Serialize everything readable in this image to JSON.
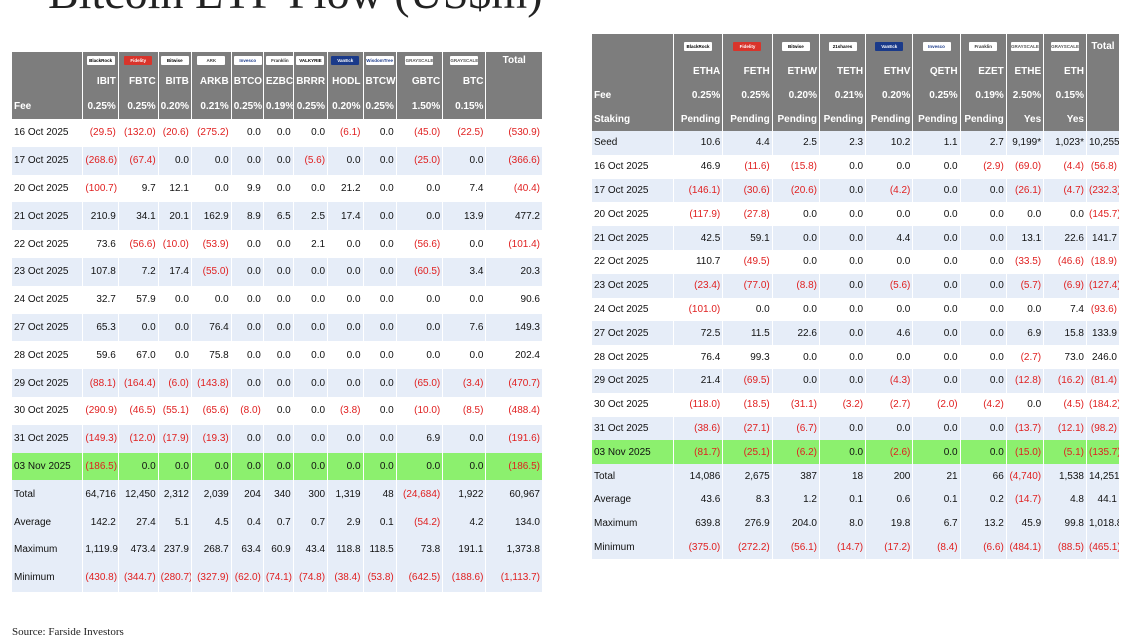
{
  "title": "Bitcoin ETF Flow (US$m)",
  "source": "Source: Farside Investors",
  "colors": {
    "header_bg": "#7d7d7d",
    "stripe": "#e6edf8",
    "highlight": "#8cf06e",
    "negative": "#e02020"
  },
  "btc": {
    "logos": [
      {
        "text": "BlackRock",
        "bg": "#ffffff",
        "fg": "#000000"
      },
      {
        "text": "Fidelity",
        "bg": "#d9342b",
        "fg": "#ffffff"
      },
      {
        "text": "Bitwise",
        "bg": "#ffffff",
        "fg": "#000000"
      },
      {
        "text": "ARK",
        "bg": "#ffffff",
        "fg": "#444444"
      },
      {
        "text": "Invesco",
        "bg": "#ffffff",
        "fg": "#1a3a8a"
      },
      {
        "text": "Franklin",
        "bg": "#ffffff",
        "fg": "#333333"
      },
      {
        "text": "VALKYRIE",
        "bg": "#ffffff",
        "fg": "#000000"
      },
      {
        "text": "VanEck",
        "bg": "#1a3a8a",
        "fg": "#ffffff"
      },
      {
        "text": "WisdomTree",
        "bg": "#ffffff",
        "fg": "#1a3a8a"
      },
      {
        "text": "GRAYSCALE",
        "bg": "#ffffff",
        "fg": "#555555"
      },
      {
        "text": "GRAYSCALE",
        "bg": "#ffffff",
        "fg": "#555555"
      }
    ],
    "total_label": "Total",
    "tickers": [
      "IBIT",
      "FBTC",
      "BITB",
      "ARKB",
      "BTCO",
      "EZBC",
      "BRRR",
      "HODL",
      "BTCW",
      "GBTC",
      "BTC"
    ],
    "fee_label": "Fee",
    "fees": [
      "0.25%",
      "0.25%",
      "0.20%",
      "0.21%",
      "0.25%",
      "0.19%",
      "0.25%",
      "0.20%",
      "0.25%",
      "1.50%",
      "0.15%"
    ],
    "rows": [
      {
        "date": "16 Oct 2025",
        "values": [
          "(29.5)",
          "(132.0)",
          "(20.6)",
          "(275.2)",
          "0.0",
          "0.0",
          "0.0",
          "(6.1)",
          "0.0",
          "(45.0)",
          "(22.5)"
        ],
        "total": "(530.9)"
      },
      {
        "date": "17 Oct 2025",
        "values": [
          "(268.6)",
          "(67.4)",
          "0.0",
          "0.0",
          "0.0",
          "0.0",
          "(5.6)",
          "0.0",
          "0.0",
          "(25.0)",
          "0.0"
        ],
        "total": "(366.6)"
      },
      {
        "date": "20 Oct 2025",
        "values": [
          "(100.7)",
          "9.7",
          "12.1",
          "0.0",
          "9.9",
          "0.0",
          "0.0",
          "21.2",
          "0.0",
          "0.0",
          "7.4"
        ],
        "total": "(40.4)"
      },
      {
        "date": "21 Oct 2025",
        "values": [
          "210.9",
          "34.1",
          "20.1",
          "162.9",
          "8.9",
          "6.5",
          "2.5",
          "17.4",
          "0.0",
          "0.0",
          "13.9"
        ],
        "total": "477.2"
      },
      {
        "date": "22 Oct 2025",
        "values": [
          "73.6",
          "(56.6)",
          "(10.0)",
          "(53.9)",
          "0.0",
          "0.0",
          "2.1",
          "0.0",
          "0.0",
          "(56.6)",
          "0.0"
        ],
        "total": "(101.4)"
      },
      {
        "date": "23 Oct 2025",
        "values": [
          "107.8",
          "7.2",
          "17.4",
          "(55.0)",
          "0.0",
          "0.0",
          "0.0",
          "0.0",
          "0.0",
          "(60.5)",
          "3.4"
        ],
        "total": "20.3"
      },
      {
        "date": "24 Oct 2025",
        "values": [
          "32.7",
          "57.9",
          "0.0",
          "0.0",
          "0.0",
          "0.0",
          "0.0",
          "0.0",
          "0.0",
          "0.0",
          "0.0"
        ],
        "total": "90.6"
      },
      {
        "date": "27 Oct 2025",
        "values": [
          "65.3",
          "0.0",
          "0.0",
          "76.4",
          "0.0",
          "0.0",
          "0.0",
          "0.0",
          "0.0",
          "0.0",
          "7.6"
        ],
        "total": "149.3"
      },
      {
        "date": "28 Oct 2025",
        "values": [
          "59.6",
          "67.0",
          "0.0",
          "75.8",
          "0.0",
          "0.0",
          "0.0",
          "0.0",
          "0.0",
          "0.0",
          "0.0"
        ],
        "total": "202.4"
      },
      {
        "date": "29 Oct 2025",
        "values": [
          "(88.1)",
          "(164.4)",
          "(6.0)",
          "(143.8)",
          "0.0",
          "0.0",
          "0.0",
          "0.0",
          "0.0",
          "(65.0)",
          "(3.4)"
        ],
        "total": "(470.7)"
      },
      {
        "date": "30 Oct 2025",
        "values": [
          "(290.9)",
          "(46.5)",
          "(55.1)",
          "(65.6)",
          "(8.0)",
          "0.0",
          "0.0",
          "(3.8)",
          "0.0",
          "(10.0)",
          "(8.5)"
        ],
        "total": "(488.4)"
      },
      {
        "date": "31 Oct 2025",
        "values": [
          "(149.3)",
          "(12.0)",
          "(17.9)",
          "(19.3)",
          "0.0",
          "0.0",
          "0.0",
          "0.0",
          "0.0",
          "6.9",
          "0.0"
        ],
        "total": "(191.6)"
      },
      {
        "date": "03 Nov 2025",
        "values": [
          "(186.5)",
          "0.0",
          "0.0",
          "0.0",
          "0.0",
          "0.0",
          "0.0",
          "0.0",
          "0.0",
          "0.0",
          "0.0"
        ],
        "total": "(186.5)",
        "highlight": true
      }
    ],
    "summary": [
      {
        "label": "Total",
        "values": [
          "64,716",
          "12,450",
          "2,312",
          "2,039",
          "204",
          "340",
          "300",
          "1,319",
          "48",
          "(24,684)",
          "1,922"
        ],
        "total": "60,967"
      },
      {
        "label": "Average",
        "values": [
          "142.2",
          "27.4",
          "5.1",
          "4.5",
          "0.4",
          "0.7",
          "0.7",
          "2.9",
          "0.1",
          "(54.2)",
          "4.2"
        ],
        "total": "134.0"
      },
      {
        "label": "Maximum",
        "values": [
          "1,119.9",
          "473.4",
          "237.9",
          "268.7",
          "63.4",
          "60.9",
          "43.4",
          "118.8",
          "118.5",
          "73.8",
          "191.1"
        ],
        "total": "1,373.8"
      },
      {
        "label": "Minimum",
        "values": [
          "(430.8)",
          "(344.7)",
          "(280.7)",
          "(327.9)",
          "(62.0)",
          "(74.1)",
          "(74.8)",
          "(38.4)",
          "(53.8)",
          "(642.5)",
          "(188.6)"
        ],
        "total": "(1,113.7)"
      }
    ]
  },
  "eth": {
    "logos": [
      {
        "text": "BlackRock",
        "bg": "#ffffff",
        "fg": "#000000"
      },
      {
        "text": "Fidelity",
        "bg": "#d9342b",
        "fg": "#ffffff"
      },
      {
        "text": "Bitwise",
        "bg": "#ffffff",
        "fg": "#000000"
      },
      {
        "text": "21shares",
        "bg": "#ffffff",
        "fg": "#000000"
      },
      {
        "text": "VanEck",
        "bg": "#1a3a8a",
        "fg": "#ffffff"
      },
      {
        "text": "Invesco",
        "bg": "#ffffff",
        "fg": "#1a3a8a"
      },
      {
        "text": "Franklin",
        "bg": "#ffffff",
        "fg": "#333333"
      },
      {
        "text": "GRAYSCALE",
        "bg": "#ffffff",
        "fg": "#555555"
      },
      {
        "text": "GRAYSCALE",
        "bg": "#ffffff",
        "fg": "#555555"
      }
    ],
    "total_label": "Total",
    "tickers": [
      "ETHA",
      "FETH",
      "ETHW",
      "TETH",
      "ETHV",
      "QETH",
      "EZET",
      "ETHE",
      "ETH"
    ],
    "fee_label": "Fee",
    "fees": [
      "0.25%",
      "0.25%",
      "0.20%",
      "0.21%",
      "0.20%",
      "0.25%",
      "0.19%",
      "2.50%",
      "0.15%"
    ],
    "staking_label": "Staking",
    "staking": [
      "Pending",
      "Pending",
      "Pending",
      "Pending",
      "Pending",
      "Pending",
      "Pending",
      "Yes",
      "Yes"
    ],
    "seed": {
      "label": "Seed",
      "values": [
        "10.6",
        "4.4",
        "2.5",
        "2.3",
        "10.2",
        "1.1",
        "2.7",
        "9,199*",
        "1,023*"
      ],
      "total": "10,255"
    },
    "rows": [
      {
        "date": "16 Oct 2025",
        "values": [
          "46.9",
          "(11.6)",
          "(15.8)",
          "0.0",
          "0.0",
          "0.0",
          "(2.9)",
          "(69.0)",
          "(4.4)"
        ],
        "total": "(56.8)"
      },
      {
        "date": "17 Oct 2025",
        "values": [
          "(146.1)",
          "(30.6)",
          "(20.6)",
          "0.0",
          "(4.2)",
          "0.0",
          "0.0",
          "(26.1)",
          "(4.7)"
        ],
        "total": "(232.3)"
      },
      {
        "date": "20 Oct 2025",
        "values": [
          "(117.9)",
          "(27.8)",
          "0.0",
          "0.0",
          "0.0",
          "0.0",
          "0.0",
          "0.0",
          "0.0"
        ],
        "total": "(145.7)"
      },
      {
        "date": "21 Oct 2025",
        "values": [
          "42.5",
          "59.1",
          "0.0",
          "0.0",
          "4.4",
          "0.0",
          "0.0",
          "13.1",
          "22.6"
        ],
        "total": "141.7"
      },
      {
        "date": "22 Oct 2025",
        "values": [
          "110.7",
          "(49.5)",
          "0.0",
          "0.0",
          "0.0",
          "0.0",
          "0.0",
          "(33.5)",
          "(46.6)"
        ],
        "total": "(18.9)"
      },
      {
        "date": "23 Oct 2025",
        "values": [
          "(23.4)",
          "(77.0)",
          "(8.8)",
          "0.0",
          "(5.6)",
          "0.0",
          "0.0",
          "(5.7)",
          "(6.9)"
        ],
        "total": "(127.4)"
      },
      {
        "date": "24 Oct 2025",
        "values": [
          "(101.0)",
          "0.0",
          "0.0",
          "0.0",
          "0.0",
          "0.0",
          "0.0",
          "0.0",
          "7.4"
        ],
        "total": "(93.6)"
      },
      {
        "date": "27 Oct 2025",
        "values": [
          "72.5",
          "11.5",
          "22.6",
          "0.0",
          "4.6",
          "0.0",
          "0.0",
          "6.9",
          "15.8"
        ],
        "total": "133.9"
      },
      {
        "date": "28 Oct 2025",
        "values": [
          "76.4",
          "99.3",
          "0.0",
          "0.0",
          "0.0",
          "0.0",
          "0.0",
          "(2.7)",
          "73.0"
        ],
        "total": "246.0"
      },
      {
        "date": "29 Oct 2025",
        "values": [
          "21.4",
          "(69.5)",
          "0.0",
          "0.0",
          "(4.3)",
          "0.0",
          "0.0",
          "(12.8)",
          "(16.2)"
        ],
        "total": "(81.4)"
      },
      {
        "date": "30 Oct 2025",
        "values": [
          "(118.0)",
          "(18.5)",
          "(31.1)",
          "(3.2)",
          "(2.7)",
          "(2.0)",
          "(4.2)",
          "0.0",
          "(4.5)"
        ],
        "total": "(184.2)"
      },
      {
        "date": "31 Oct 2025",
        "values": [
          "(38.6)",
          "(27.1)",
          "(6.7)",
          "0.0",
          "0.0",
          "0.0",
          "0.0",
          "(13.7)",
          "(12.1)"
        ],
        "total": "(98.2)"
      },
      {
        "date": "03 Nov 2025",
        "values": [
          "(81.7)",
          "(25.1)",
          "(6.2)",
          "0.0",
          "(2.6)",
          "0.0",
          "0.0",
          "(15.0)",
          "(5.1)"
        ],
        "total": "(135.7)",
        "highlight": true
      }
    ],
    "summary": [
      {
        "label": "Total",
        "values": [
          "14,086",
          "2,675",
          "387",
          "18",
          "200",
          "21",
          "66",
          "(4,740)",
          "1,538"
        ],
        "total": "14,251"
      },
      {
        "label": "Average",
        "values": [
          "43.6",
          "8.3",
          "1.2",
          "0.1",
          "0.6",
          "0.1",
          "0.2",
          "(14.7)",
          "4.8"
        ],
        "total": "44.1"
      },
      {
        "label": "Maximum",
        "values": [
          "639.8",
          "276.9",
          "204.0",
          "8.0",
          "19.8",
          "6.7",
          "13.2",
          "45.9",
          "99.8"
        ],
        "total": "1,018.8"
      },
      {
        "label": "Minimum",
        "values": [
          "(375.0)",
          "(272.2)",
          "(56.1)",
          "(14.7)",
          "(17.2)",
          "(8.4)",
          "(6.6)",
          "(484.1)",
          "(88.5)"
        ],
        "total": "(465.1)"
      }
    ]
  }
}
